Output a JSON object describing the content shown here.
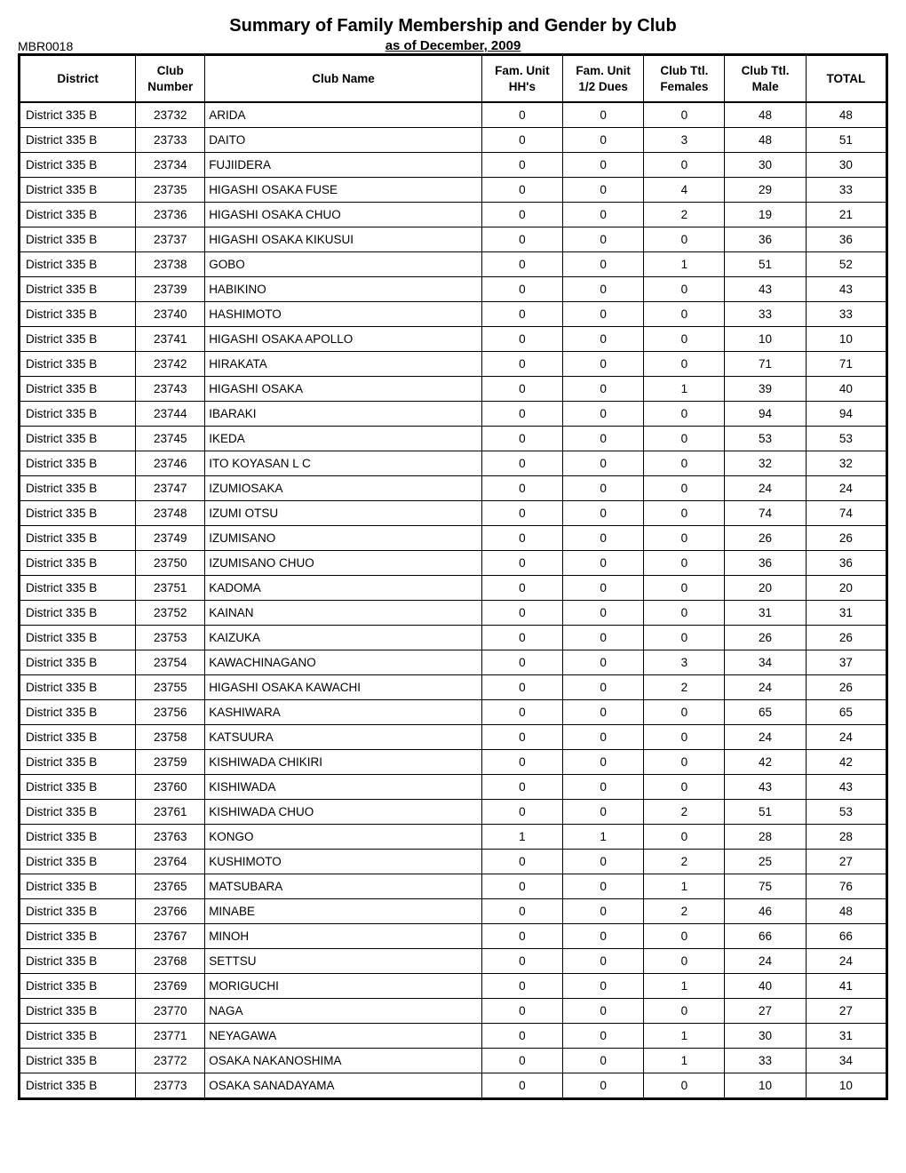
{
  "title": "Summary of Family Membership and Gender by Club",
  "report_id": "MBR0018",
  "subtitle": "as of December, 2009",
  "columns": [
    "District",
    "Club Number",
    "Club Name",
    "Fam. Unit HH's",
    "Fam. Unit 1/2 Dues",
    "Club Ttl. Females",
    "Club Ttl. Male",
    "TOTAL"
  ],
  "rows": [
    [
      "District 335 B",
      "23732",
      "ARIDA",
      "0",
      "0",
      "0",
      "48",
      "48"
    ],
    [
      "District 335 B",
      "23733",
      "DAITO",
      "0",
      "0",
      "3",
      "48",
      "51"
    ],
    [
      "District 335 B",
      "23734",
      "FUJIIDERA",
      "0",
      "0",
      "0",
      "30",
      "30"
    ],
    [
      "District 335 B",
      "23735",
      "HIGASHI OSAKA FUSE",
      "0",
      "0",
      "4",
      "29",
      "33"
    ],
    [
      "District 335 B",
      "23736",
      "HIGASHI OSAKA CHUO",
      "0",
      "0",
      "2",
      "19",
      "21"
    ],
    [
      "District 335 B",
      "23737",
      "HIGASHI OSAKA KIKUSUI",
      "0",
      "0",
      "0",
      "36",
      "36"
    ],
    [
      "District 335 B",
      "23738",
      "GOBO",
      "0",
      "0",
      "1",
      "51",
      "52"
    ],
    [
      "District 335 B",
      "23739",
      "HABIKINO",
      "0",
      "0",
      "0",
      "43",
      "43"
    ],
    [
      "District 335 B",
      "23740",
      "HASHIMOTO",
      "0",
      "0",
      "0",
      "33",
      "33"
    ],
    [
      "District 335 B",
      "23741",
      "HIGASHI OSAKA APOLLO",
      "0",
      "0",
      "0",
      "10",
      "10"
    ],
    [
      "District 335 B",
      "23742",
      "HIRAKATA",
      "0",
      "0",
      "0",
      "71",
      "71"
    ],
    [
      "District 335 B",
      "23743",
      "HIGASHI OSAKA",
      "0",
      "0",
      "1",
      "39",
      "40"
    ],
    [
      "District 335 B",
      "23744",
      "IBARAKI",
      "0",
      "0",
      "0",
      "94",
      "94"
    ],
    [
      "District 335 B",
      "23745",
      "IKEDA",
      "0",
      "0",
      "0",
      "53",
      "53"
    ],
    [
      "District 335 B",
      "23746",
      "ITO KOYASAN L C",
      "0",
      "0",
      "0",
      "32",
      "32"
    ],
    [
      "District 335 B",
      "23747",
      "IZUMIOSAKA",
      "0",
      "0",
      "0",
      "24",
      "24"
    ],
    [
      "District 335 B",
      "23748",
      "IZUMI OTSU",
      "0",
      "0",
      "0",
      "74",
      "74"
    ],
    [
      "District 335 B",
      "23749",
      "IZUMISANO",
      "0",
      "0",
      "0",
      "26",
      "26"
    ],
    [
      "District 335 B",
      "23750",
      "IZUMISANO CHUO",
      "0",
      "0",
      "0",
      "36",
      "36"
    ],
    [
      "District 335 B",
      "23751",
      "KADOMA",
      "0",
      "0",
      "0",
      "20",
      "20"
    ],
    [
      "District 335 B",
      "23752",
      "KAINAN",
      "0",
      "0",
      "0",
      "31",
      "31"
    ],
    [
      "District 335 B",
      "23753",
      "KAIZUKA",
      "0",
      "0",
      "0",
      "26",
      "26"
    ],
    [
      "District 335 B",
      "23754",
      "KAWACHINAGANO",
      "0",
      "0",
      "3",
      "34",
      "37"
    ],
    [
      "District 335 B",
      "23755",
      "HIGASHI OSAKA KAWACHI",
      "0",
      "0",
      "2",
      "24",
      "26"
    ],
    [
      "District 335 B",
      "23756",
      "KASHIWARA",
      "0",
      "0",
      "0",
      "65",
      "65"
    ],
    [
      "District 335 B",
      "23758",
      "KATSUURA",
      "0",
      "0",
      "0",
      "24",
      "24"
    ],
    [
      "District 335 B",
      "23759",
      "KISHIWADA CHIKIRI",
      "0",
      "0",
      "0",
      "42",
      "42"
    ],
    [
      "District 335 B",
      "23760",
      "KISHIWADA",
      "0",
      "0",
      "0",
      "43",
      "43"
    ],
    [
      "District 335 B",
      "23761",
      "KISHIWADA CHUO",
      "0",
      "0",
      "2",
      "51",
      "53"
    ],
    [
      "District 335 B",
      "23763",
      "KONGO",
      "1",
      "1",
      "0",
      "28",
      "28"
    ],
    [
      "District 335 B",
      "23764",
      "KUSHIMOTO",
      "0",
      "0",
      "2",
      "25",
      "27"
    ],
    [
      "District 335 B",
      "23765",
      "MATSUBARA",
      "0",
      "0",
      "1",
      "75",
      "76"
    ],
    [
      "District 335 B",
      "23766",
      "MINABE",
      "0",
      "0",
      "2",
      "46",
      "48"
    ],
    [
      "District 335 B",
      "23767",
      "MINOH",
      "0",
      "0",
      "0",
      "66",
      "66"
    ],
    [
      "District 335 B",
      "23768",
      "SETTSU",
      "0",
      "0",
      "0",
      "24",
      "24"
    ],
    [
      "District 335 B",
      "23769",
      "MORIGUCHI",
      "0",
      "0",
      "1",
      "40",
      "41"
    ],
    [
      "District 335 B",
      "23770",
      "NAGA",
      "0",
      "0",
      "0",
      "27",
      "27"
    ],
    [
      "District 335 B",
      "23771",
      "NEYAGAWA",
      "0",
      "0",
      "1",
      "30",
      "31"
    ],
    [
      "District 335 B",
      "23772",
      "OSAKA NAKANOSHIMA",
      "0",
      "0",
      "1",
      "33",
      "34"
    ],
    [
      "District 335 B",
      "23773",
      "OSAKA SANADAYAMA",
      "0",
      "0",
      "0",
      "10",
      "10"
    ]
  ],
  "style": {
    "background_color": "#ffffff",
    "border_color": "#000000",
    "text_color": "#000000",
    "title_fontsize": 20,
    "header_fontsize": 13.5,
    "cell_fontsize": 13.5,
    "outer_border_width": 3,
    "inner_border_width": 1
  }
}
